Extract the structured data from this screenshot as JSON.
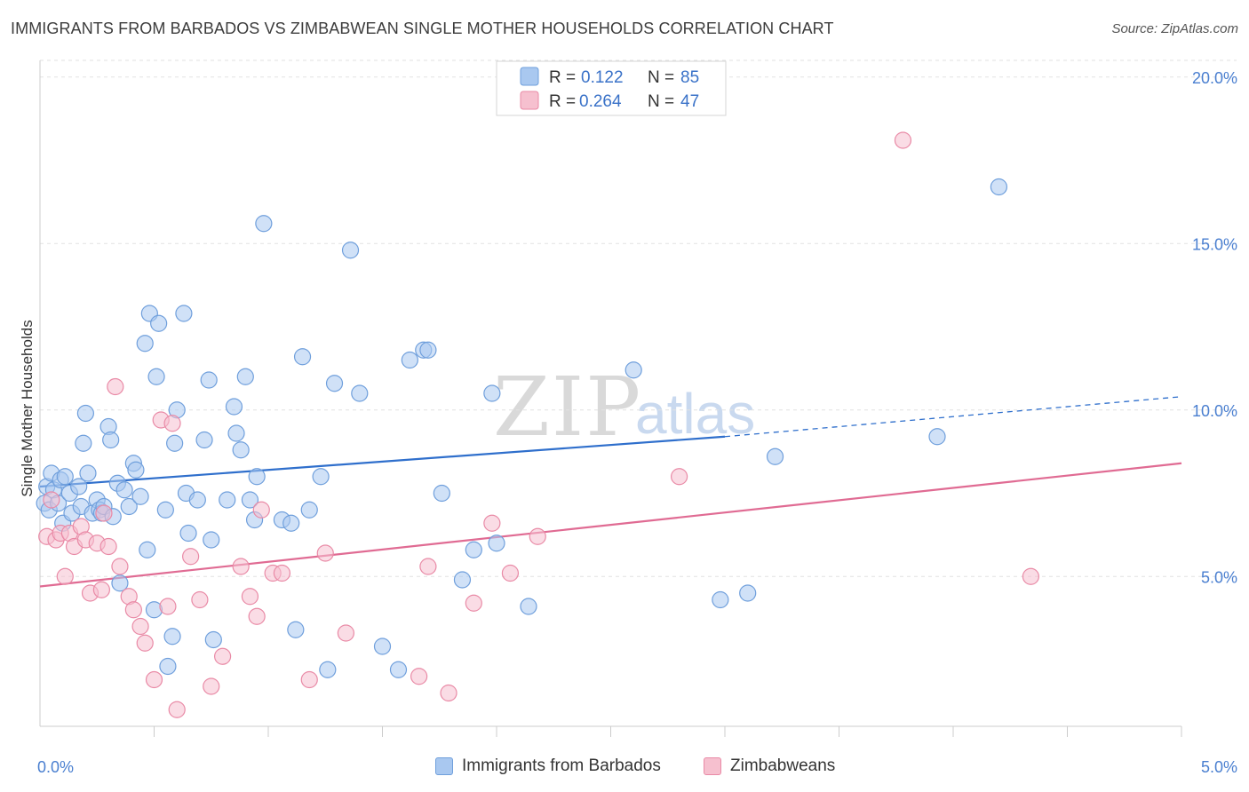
{
  "header": {
    "title": "IMMIGRANTS FROM BARBADOS VS ZIMBABWEAN SINGLE MOTHER HOUSEHOLDS CORRELATION CHART",
    "source": "Source: ZipAtlas.com"
  },
  "watermark": {
    "zip": "ZIP",
    "atlas": "atlas"
  },
  "legend": {
    "barbados": {
      "r_label": "R =",
      "r_value": "0.122",
      "n_label": "N =",
      "n_value": "85"
    },
    "zimbabwe": {
      "r_label": "R =",
      "r_value": "0.264",
      "n_label": "N =",
      "n_value": "47"
    }
  },
  "bottom_legend": {
    "barbados": "Immigrants from Barbados",
    "zimbabwe": "Zimbabweans"
  },
  "colors": {
    "blue_fill": "#a9c8f0",
    "blue_stroke": "#6f9fdc",
    "blue_line": "#2f6fcc",
    "pink_fill": "#f6c0cf",
    "pink_stroke": "#e98aa6",
    "pink_line": "#e06b93",
    "grid": "#e2e2e2",
    "tick_text": "#4a7fd0"
  },
  "chart_data": {
    "type": "scatter",
    "title": "IMMIGRANTS FROM BARBADOS VS ZIMBABWEAN SINGLE MOTHER HOUSEHOLDS CORRELATION CHART",
    "xlabel": "",
    "ylabel": "Single Mother Households",
    "xlim": [
      0,
      5
    ],
    "ylim": [
      0.5,
      20.5
    ],
    "x_tick_labels": [
      "0.0%",
      "5.0%"
    ],
    "y_ticks": [
      5,
      10,
      15,
      20
    ],
    "y_tick_labels": [
      "5.0%",
      "10.0%",
      "15.0%",
      "20.0%"
    ],
    "grid": true,
    "series": [
      {
        "name": "Immigrants from Barbados",
        "color": "#a9c8f0",
        "trend": {
          "x": [
            0,
            3.0
          ],
          "y": [
            7.7,
            9.2
          ],
          "dashed_to": [
            5.0,
            10.4
          ]
        },
        "points": [
          [
            0.02,
            7.2
          ],
          [
            0.03,
            7.7
          ],
          [
            0.04,
            7.0
          ],
          [
            0.05,
            8.1
          ],
          [
            0.06,
            7.6
          ],
          [
            0.08,
            7.2
          ],
          [
            0.09,
            7.9
          ],
          [
            0.1,
            6.6
          ],
          [
            0.11,
            8.0
          ],
          [
            0.13,
            7.5
          ],
          [
            0.14,
            6.9
          ],
          [
            0.17,
            7.7
          ],
          [
            0.18,
            7.1
          ],
          [
            0.19,
            9.0
          ],
          [
            0.2,
            9.9
          ],
          [
            0.21,
            8.1
          ],
          [
            0.23,
            6.9
          ],
          [
            0.25,
            7.3
          ],
          [
            0.26,
            7.0
          ],
          [
            0.27,
            6.9
          ],
          [
            0.28,
            7.1
          ],
          [
            0.3,
            9.5
          ],
          [
            0.31,
            9.1
          ],
          [
            0.32,
            6.8
          ],
          [
            0.34,
            7.8
          ],
          [
            0.35,
            4.8
          ],
          [
            0.37,
            7.6
          ],
          [
            0.39,
            7.1
          ],
          [
            0.41,
            8.4
          ],
          [
            0.42,
            8.2
          ],
          [
            0.44,
            7.4
          ],
          [
            0.46,
            12.0
          ],
          [
            0.47,
            5.8
          ],
          [
            0.48,
            12.9
          ],
          [
            0.5,
            4.0
          ],
          [
            0.51,
            11.0
          ],
          [
            0.52,
            12.6
          ],
          [
            0.55,
            7.0
          ],
          [
            0.56,
            2.3
          ],
          [
            0.58,
            3.2
          ],
          [
            0.59,
            9.0
          ],
          [
            0.6,
            10.0
          ],
          [
            0.63,
            12.9
          ],
          [
            0.64,
            7.5
          ],
          [
            0.65,
            6.3
          ],
          [
            0.69,
            7.3
          ],
          [
            0.72,
            9.1
          ],
          [
            0.74,
            10.9
          ],
          [
            0.75,
            6.1
          ],
          [
            0.76,
            3.1
          ],
          [
            0.82,
            7.3
          ],
          [
            0.85,
            10.1
          ],
          [
            0.86,
            9.3
          ],
          [
            0.88,
            8.8
          ],
          [
            0.9,
            11.0
          ],
          [
            0.92,
            7.3
          ],
          [
            0.94,
            6.7
          ],
          [
            0.95,
            8.0
          ],
          [
            0.98,
            15.6
          ],
          [
            1.06,
            6.7
          ],
          [
            1.1,
            6.6
          ],
          [
            1.12,
            3.4
          ],
          [
            1.15,
            11.6
          ],
          [
            1.18,
            7.0
          ],
          [
            1.23,
            8.0
          ],
          [
            1.26,
            2.2
          ],
          [
            1.29,
            10.8
          ],
          [
            1.36,
            14.8
          ],
          [
            1.4,
            10.5
          ],
          [
            1.5,
            2.9
          ],
          [
            1.57,
            2.2
          ],
          [
            1.62,
            11.5
          ],
          [
            1.68,
            11.8
          ],
          [
            1.7,
            11.8
          ],
          [
            1.76,
            7.5
          ],
          [
            1.85,
            4.9
          ],
          [
            1.9,
            5.8
          ],
          [
            1.98,
            10.5
          ],
          [
            2.0,
            6.0
          ],
          [
            2.14,
            4.1
          ],
          [
            2.6,
            11.2
          ],
          [
            2.98,
            4.3
          ],
          [
            3.1,
            4.5
          ],
          [
            3.22,
            8.6
          ],
          [
            3.93,
            9.2
          ],
          [
            4.2,
            16.7
          ]
        ]
      },
      {
        "name": "Zimbabweans",
        "color": "#f6c0cf",
        "trend": {
          "x": [
            0,
            5.0
          ],
          "y": [
            4.7,
            8.4
          ]
        },
        "points": [
          [
            0.03,
            6.2
          ],
          [
            0.05,
            7.3
          ],
          [
            0.07,
            6.1
          ],
          [
            0.09,
            6.3
          ],
          [
            0.11,
            5.0
          ],
          [
            0.13,
            6.3
          ],
          [
            0.15,
            5.9
          ],
          [
            0.18,
            6.5
          ],
          [
            0.2,
            6.1
          ],
          [
            0.22,
            4.5
          ],
          [
            0.25,
            6.0
          ],
          [
            0.27,
            4.6
          ],
          [
            0.28,
            6.9
          ],
          [
            0.3,
            5.9
          ],
          [
            0.33,
            10.7
          ],
          [
            0.35,
            5.3
          ],
          [
            0.39,
            4.4
          ],
          [
            0.41,
            4.0
          ],
          [
            0.44,
            3.5
          ],
          [
            0.46,
            3.0
          ],
          [
            0.5,
            1.9
          ],
          [
            0.53,
            9.7
          ],
          [
            0.56,
            4.1
          ],
          [
            0.58,
            9.6
          ],
          [
            0.6,
            1.0
          ],
          [
            0.66,
            5.6
          ],
          [
            0.7,
            4.3
          ],
          [
            0.75,
            1.7
          ],
          [
            0.8,
            2.6
          ],
          [
            0.88,
            5.3
          ],
          [
            0.92,
            4.4
          ],
          [
            0.95,
            3.8
          ],
          [
            0.97,
            7.0
          ],
          [
            1.02,
            5.1
          ],
          [
            1.06,
            5.1
          ],
          [
            1.18,
            1.9
          ],
          [
            1.25,
            5.7
          ],
          [
            1.34,
            3.3
          ],
          [
            1.66,
            2.0
          ],
          [
            1.7,
            5.3
          ],
          [
            1.79,
            1.5
          ],
          [
            1.9,
            4.2
          ],
          [
            1.98,
            6.6
          ],
          [
            2.06,
            5.1
          ],
          [
            2.18,
            6.2
          ],
          [
            2.8,
            8.0
          ],
          [
            3.78,
            18.1
          ],
          [
            4.34,
            5.0
          ]
        ]
      }
    ]
  }
}
